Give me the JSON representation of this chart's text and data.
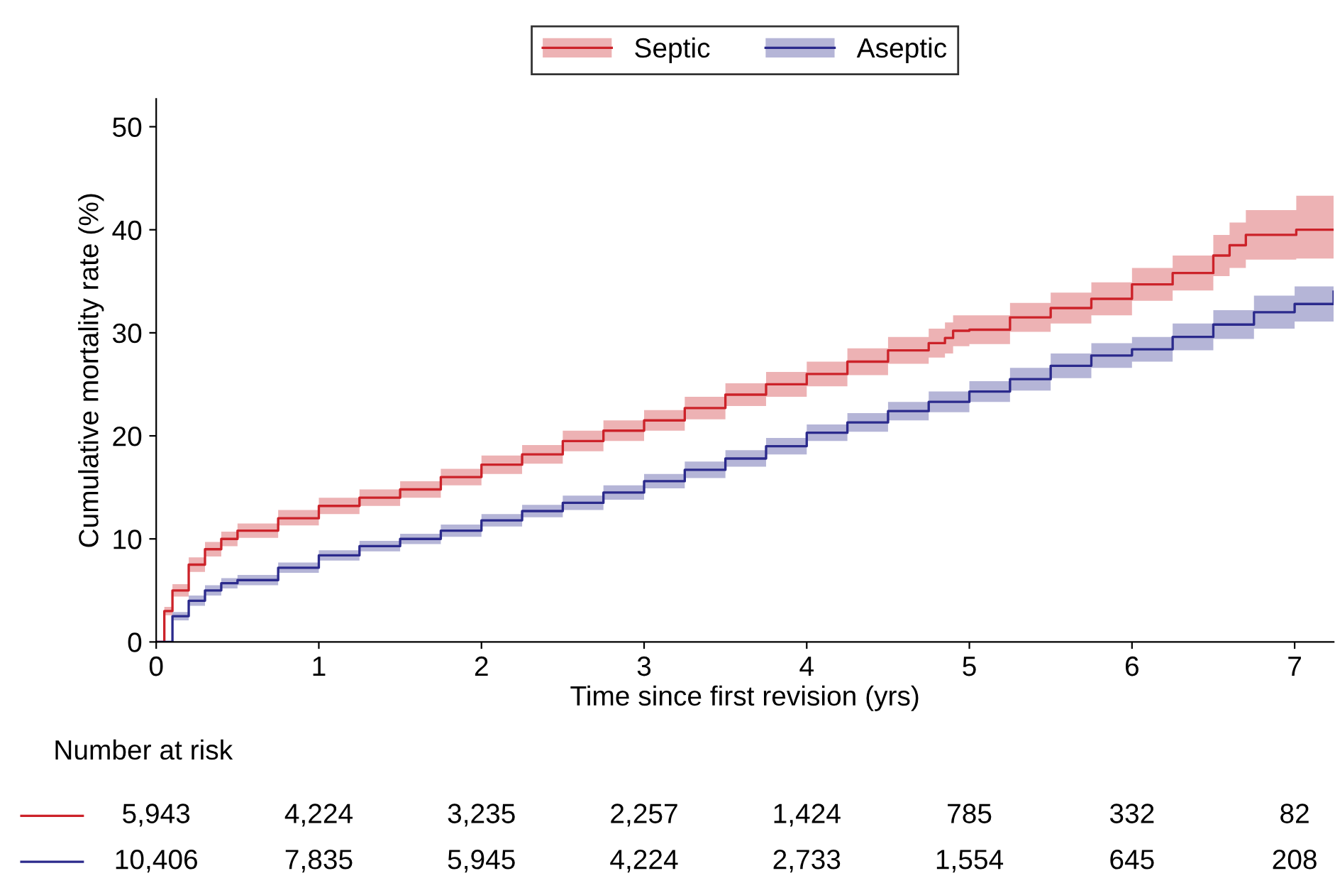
{
  "chart_data": {
    "type": "step",
    "xlabel": "Time since first revision (yrs)",
    "ylabel": "Cumulative mortality rate (%)",
    "xlim": [
      0,
      7.24
    ],
    "ylim": [
      0,
      52.7
    ],
    "xticks": [
      0,
      1,
      2,
      3,
      4,
      5,
      6,
      7
    ],
    "yticks": [
      0,
      10,
      20,
      30,
      40,
      50
    ],
    "grid": false,
    "legend": "top",
    "series": [
      {
        "name": "Septic",
        "color": "#cc2229",
        "x": [
          0,
          0.05,
          0.1,
          0.2,
          0.3,
          0.4,
          0.5,
          0.75,
          1,
          1.25,
          1.5,
          1.75,
          2,
          2.25,
          2.5,
          2.75,
          3,
          3.25,
          3.5,
          3.75,
          4,
          4.25,
          4.5,
          4.75,
          4.85,
          4.9,
          5,
          5.25,
          5.5,
          5.75,
          6,
          6.25,
          6.5,
          6.6,
          6.7,
          7.0,
          7.01,
          7.24
        ],
        "values": [
          0,
          3,
          5,
          7.5,
          9,
          10,
          10.8,
          12,
          13.2,
          14,
          14.8,
          16,
          17.2,
          18.2,
          19.5,
          20.5,
          21.5,
          22.7,
          24,
          25,
          26,
          27.2,
          28.3,
          29,
          29.5,
          30.2,
          30.3,
          31.5,
          32.4,
          33.3,
          34.7,
          35.8,
          37.5,
          38.5,
          39.5,
          39.5,
          40,
          40
        ],
        "lower": [
          0,
          2.6,
          4.4,
          6.8,
          8.3,
          9.3,
          10.1,
          11.3,
          12.4,
          13.2,
          14,
          15.2,
          16.3,
          17.3,
          18.5,
          19.5,
          20.5,
          21.6,
          22.9,
          23.8,
          24.8,
          25.9,
          27,
          27.6,
          28,
          28.7,
          28.9,
          30.1,
          30.9,
          31.7,
          33.1,
          34.1,
          35.5,
          36.3,
          37.1,
          37.1,
          37.2,
          37.2
        ],
        "upper": [
          0,
          3.4,
          5.6,
          8.2,
          9.7,
          10.7,
          11.5,
          12.8,
          14,
          14.8,
          15.6,
          16.8,
          18.1,
          19.1,
          20.5,
          21.5,
          22.5,
          23.8,
          25.1,
          26.2,
          27.2,
          28.5,
          29.6,
          30.4,
          31,
          31.7,
          31.7,
          32.9,
          33.9,
          34.9,
          36.3,
          37.5,
          39.5,
          40.7,
          41.9,
          41.9,
          43.3,
          43.3
        ]
      },
      {
        "name": "Aseptic",
        "color": "#2b2a8c",
        "x": [
          0,
          0.1,
          0.2,
          0.3,
          0.4,
          0.5,
          0.75,
          1,
          1.25,
          1.5,
          1.75,
          2,
          2.25,
          2.5,
          2.75,
          3,
          3.25,
          3.5,
          3.75,
          4,
          4.25,
          4.5,
          4.75,
          5,
          5.25,
          5.5,
          5.75,
          6,
          6.25,
          6.5,
          6.75,
          7,
          7.24
        ],
        "values": [
          0,
          2.5,
          4,
          5,
          5.7,
          6,
          7.2,
          8.4,
          9.3,
          10,
          10.8,
          11.8,
          12.7,
          13.5,
          14.5,
          15.6,
          16.7,
          17.8,
          19,
          20.3,
          21.3,
          22.4,
          23.3,
          24.3,
          25.5,
          26.8,
          27.8,
          28.4,
          29.6,
          30.8,
          32,
          32.8,
          34
        ],
        "lower": [
          0,
          2.1,
          3.5,
          4.5,
          5.2,
          5.5,
          6.7,
          7.9,
          8.8,
          9.5,
          10.2,
          11.2,
          12.1,
          12.8,
          13.8,
          14.9,
          15.9,
          17,
          18.2,
          19.5,
          20.4,
          21.5,
          22.3,
          23.3,
          24.4,
          25.6,
          26.6,
          27.2,
          28.3,
          29.4,
          30.4,
          31.1,
          31.7
        ],
        "upper": [
          0,
          2.9,
          4.5,
          5.5,
          6.2,
          6.5,
          7.7,
          8.9,
          9.8,
          10.5,
          11.4,
          12.4,
          13.3,
          14.2,
          15.2,
          16.3,
          17.5,
          18.6,
          19.8,
          21.1,
          22.2,
          23.3,
          24.3,
          25.3,
          26.6,
          28,
          29,
          29.6,
          30.9,
          32.2,
          33.6,
          34.5,
          36.4
        ]
      }
    ],
    "annotations": [
      "Number at risk",
      "5,943",
      "4,224",
      "3,235",
      "2,257",
      "1,424",
      "785",
      "332",
      "82",
      "10,406",
      "7,835",
      "5,945",
      "4,224",
      "2,733",
      "1,554",
      "645",
      "208"
    ]
  }
}
